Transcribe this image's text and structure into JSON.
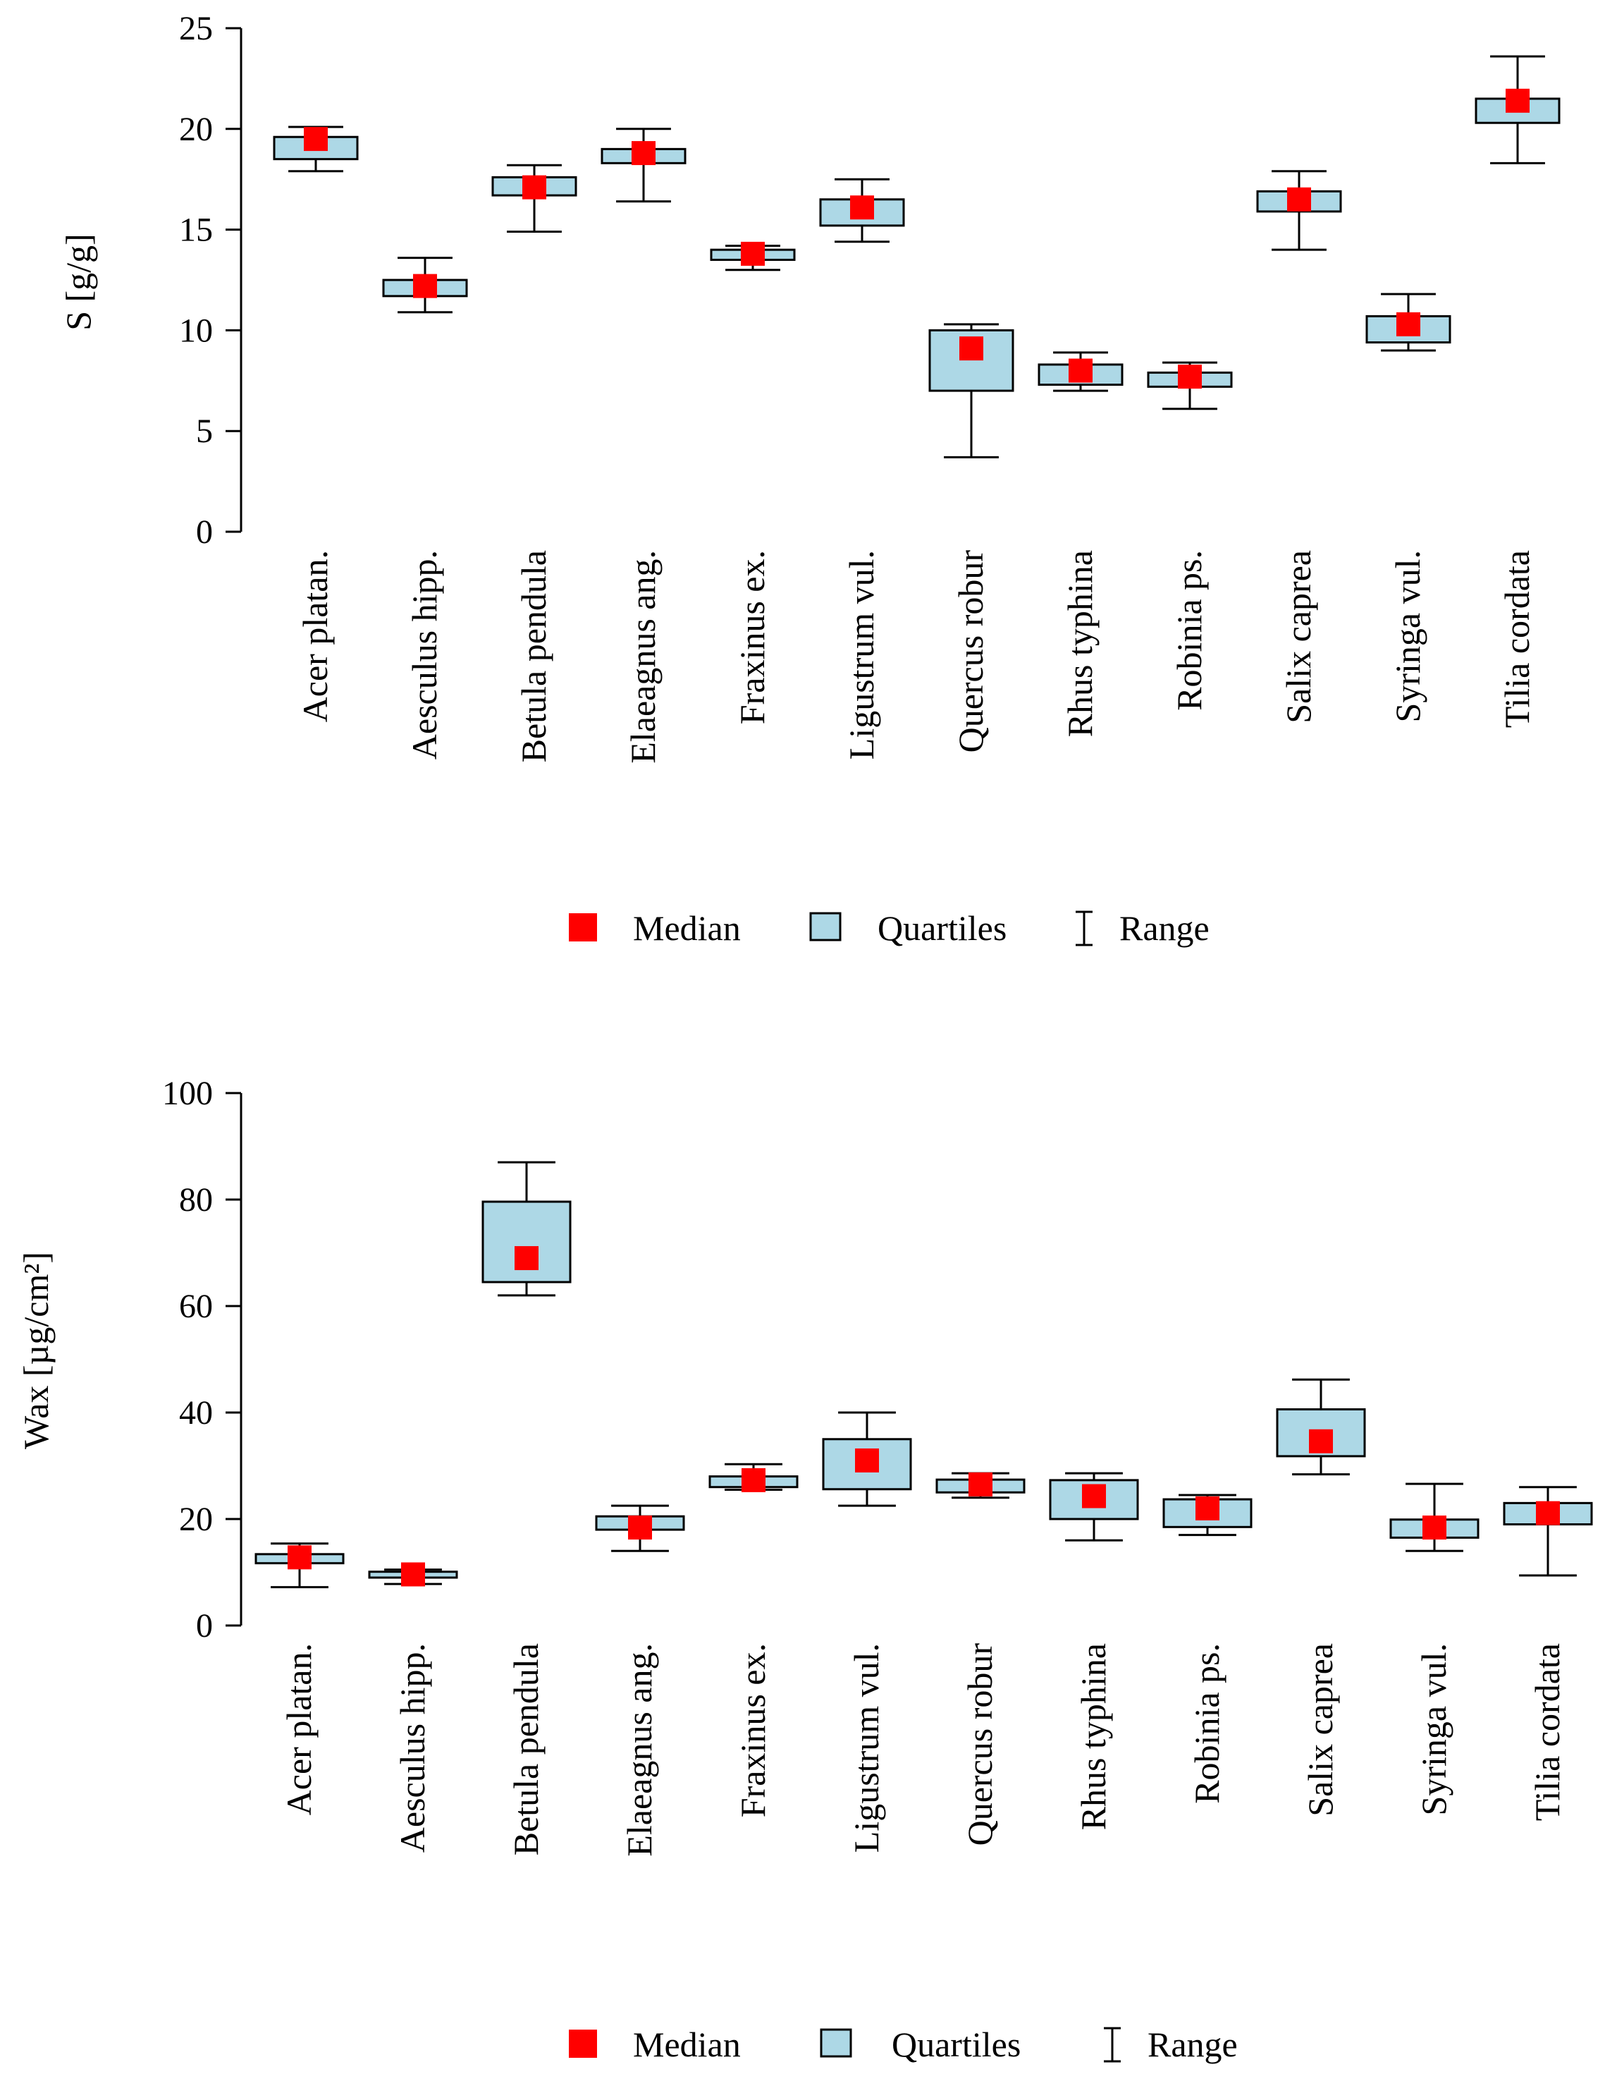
{
  "colors": {
    "box_fill": "#add8e6",
    "median": "#ff0000",
    "stroke": "#000000"
  },
  "legend": {
    "median_label": "Median",
    "quartiles_label": "Quartiles",
    "range_label": "Range"
  },
  "chart_data": [
    {
      "type": "box",
      "title": "",
      "xlabel": "",
      "ylabel": "S [g/g]",
      "ylim": [
        0,
        25
      ],
      "yticks": [
        0,
        5,
        10,
        15,
        20,
        25
      ],
      "legend_position": "bottom",
      "categories": [
        "Acer platan.",
        "Aesculus hipp.",
        "Betula pendula",
        "Elaeagnus ang.",
        "Fraxinus ex.",
        "Ligustrum vul.",
        "Quercus robur",
        "Rhus typhina",
        "Robinia ps.",
        "Salix caprea",
        "Syringa vul.",
        "Tilia cordata"
      ],
      "series": [
        {
          "name": "Median",
          "values": [
            19.5,
            12.2,
            17.1,
            18.8,
            13.8,
            16.1,
            9.1,
            8.0,
            7.7,
            16.5,
            10.3,
            21.4
          ]
        },
        {
          "name": "Q1",
          "values": [
            18.5,
            11.7,
            16.7,
            18.3,
            13.5,
            15.2,
            7.0,
            7.3,
            7.2,
            15.9,
            9.4,
            20.3
          ]
        },
        {
          "name": "Q3",
          "values": [
            19.6,
            12.5,
            17.6,
            19.0,
            14.0,
            16.5,
            10.0,
            8.3,
            7.9,
            16.9,
            10.7,
            21.5
          ]
        },
        {
          "name": "Min",
          "values": [
            17.9,
            10.9,
            14.9,
            16.4,
            13.0,
            14.4,
            3.7,
            7.0,
            6.1,
            14.0,
            9.0,
            18.3
          ]
        },
        {
          "name": "Max",
          "values": [
            20.1,
            13.6,
            18.2,
            20.0,
            14.2,
            17.5,
            10.3,
            8.9,
            8.4,
            17.9,
            11.8,
            23.6
          ]
        }
      ]
    },
    {
      "type": "box",
      "title": "",
      "xlabel": "",
      "ylabel": "Wax [µg/cm²]",
      "ylim": [
        0,
        100
      ],
      "yticks": [
        0,
        20,
        40,
        60,
        80,
        100
      ],
      "legend_position": "bottom",
      "categories": [
        "Acer platan.",
        "Aesculus hipp.",
        "Betula pendula",
        "Elaeagnus ang.",
        "Fraxinus ex.",
        "Ligustrum vul.",
        "Quercus robur",
        "Rhus typhina",
        "Robinia ps.",
        "Salix caprea",
        "Syringa vul.",
        "Tilia cordata"
      ],
      "series": [
        {
          "name": "Median",
          "values": [
            12.8,
            9.6,
            69.0,
            18.4,
            27.3,
            31.0,
            26.5,
            24.3,
            22.0,
            34.6,
            18.4,
            21.1
          ]
        },
        {
          "name": "Q1",
          "values": [
            11.7,
            9.0,
            64.5,
            18.0,
            26.0,
            25.6,
            25.0,
            20.0,
            18.5,
            31.8,
            16.5,
            19.0
          ]
        },
        {
          "name": "Q3",
          "values": [
            13.4,
            10.1,
            79.6,
            20.5,
            28.0,
            35.0,
            27.4,
            27.3,
            23.7,
            40.6,
            19.9,
            23.0
          ]
        },
        {
          "name": "Min",
          "values": [
            7.2,
            7.8,
            62.0,
            14.0,
            25.5,
            22.5,
            24.0,
            16.0,
            17.0,
            28.4,
            14.0,
            9.4
          ]
        },
        {
          "name": "Max",
          "values": [
            15.4,
            10.5,
            87.0,
            22.5,
            30.3,
            40.0,
            28.6,
            28.6,
            24.5,
            46.2,
            26.6,
            26.0
          ]
        }
      ]
    }
  ]
}
